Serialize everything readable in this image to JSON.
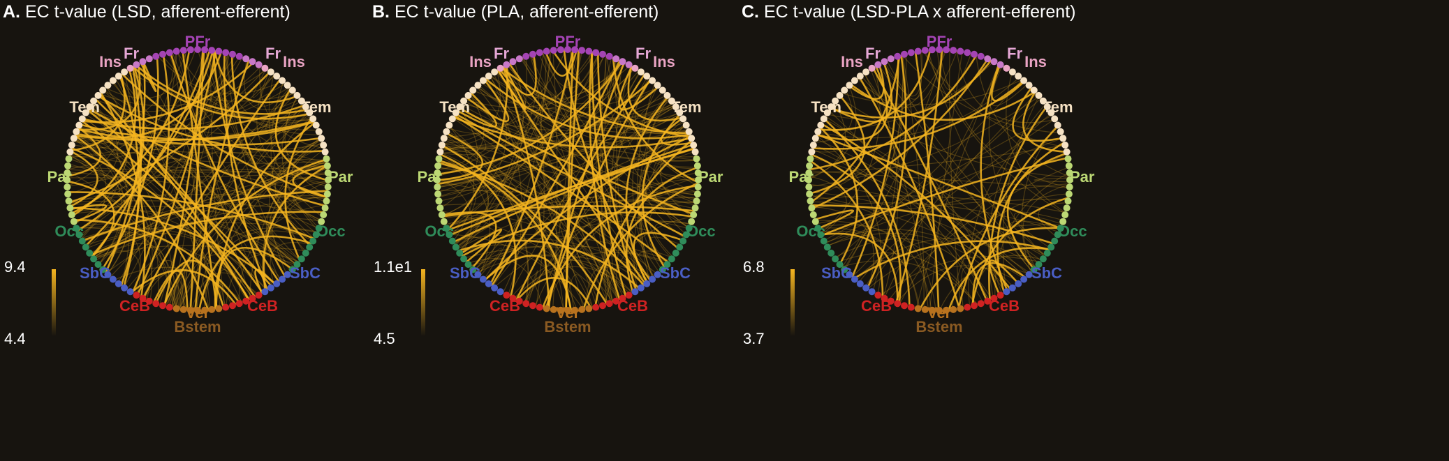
{
  "panels": [
    {
      "letter": "A.",
      "title": "EC t-value (LSD, afferent-efferent)",
      "colorbar": {
        "max": 9.4,
        "min": 4.4
      }
    },
    {
      "letter": "B.",
      "title": "EC t-value (PLA, afferent-efferent)",
      "colorbar": {
        "max": {
          "value": 11,
          "label": "1.1e1"
        },
        "min": 4.5
      }
    },
    {
      "letter": "C.",
      "title": "EC t-value (LSD-PLA x afferent-efferent)",
      "colorbar": {
        "max": 6.8,
        "min": 3.7
      }
    }
  ],
  "regions": [
    "PFr",
    "Fr",
    "Ins",
    "Tem",
    "Par",
    "Occ",
    "SbC",
    "CeB",
    "Ver",
    "Bstem"
  ]
}
